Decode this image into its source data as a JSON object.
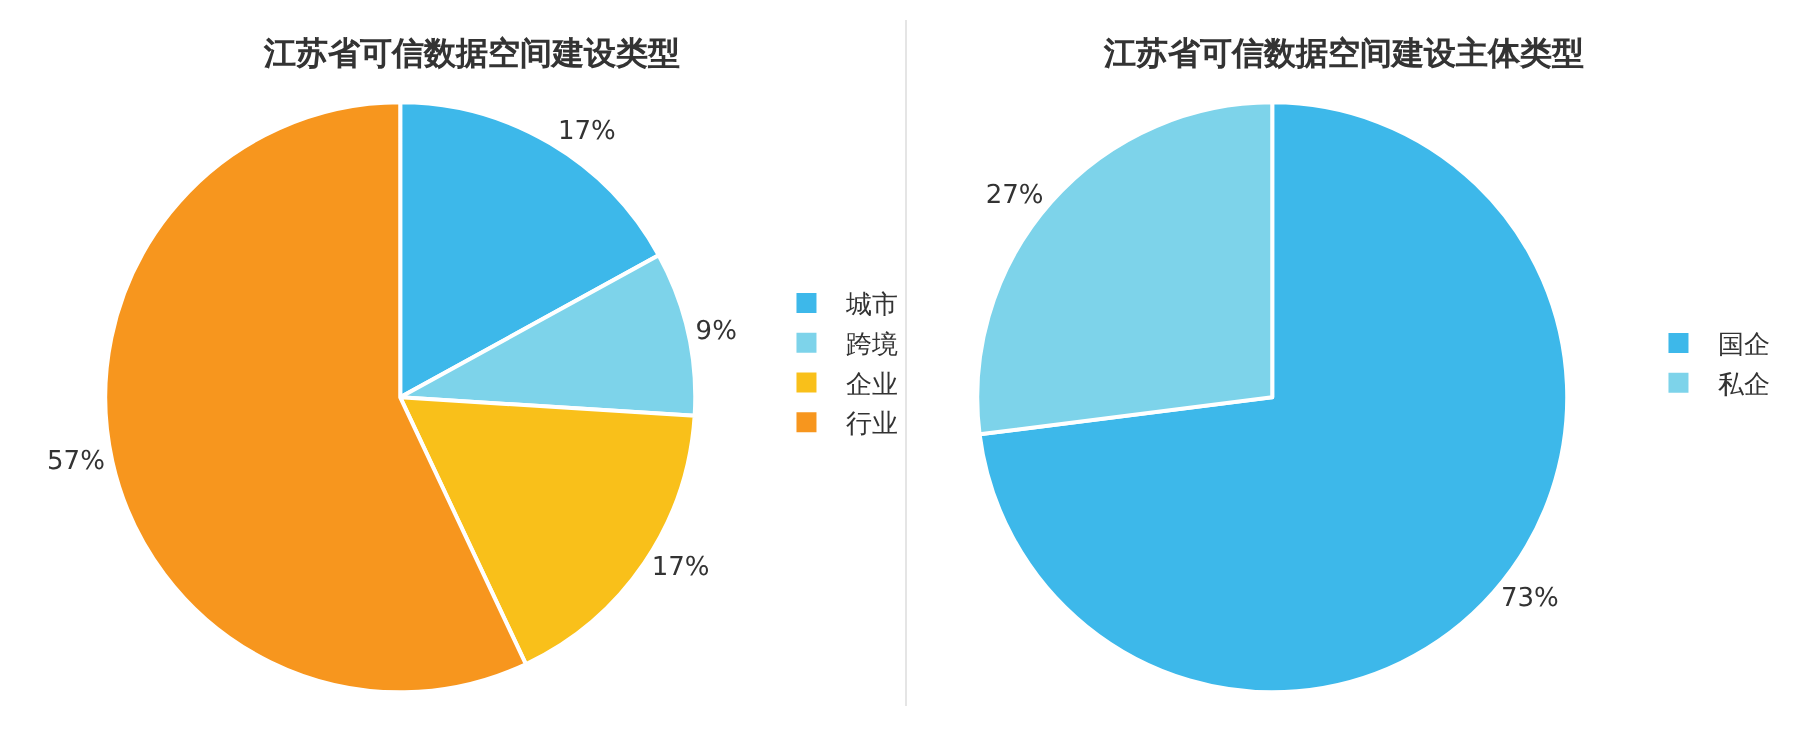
{
  "chart_data": [
    {
      "type": "pie",
      "title": "江苏省可信数据空间建设类型",
      "categories": [
        "城市",
        "跨境",
        "企业",
        "行业"
      ],
      "values": [
        17,
        9,
        17,
        57
      ],
      "colors": [
        "#3db8ea",
        "#7dd3ea",
        "#f9c01a",
        "#f7961e"
      ],
      "value_labels": [
        "17%",
        "9%",
        "17%",
        "57%"
      ],
      "legend": "right"
    },
    {
      "type": "pie",
      "title": "江苏省可信数据空间建设主体类型",
      "categories": [
        "国企",
        "私企"
      ],
      "values": [
        73,
        27
      ],
      "colors": [
        "#3db8ea",
        "#7dd3ea"
      ],
      "value_labels": [
        "73%",
        "27%"
      ],
      "legend": "right"
    }
  ]
}
